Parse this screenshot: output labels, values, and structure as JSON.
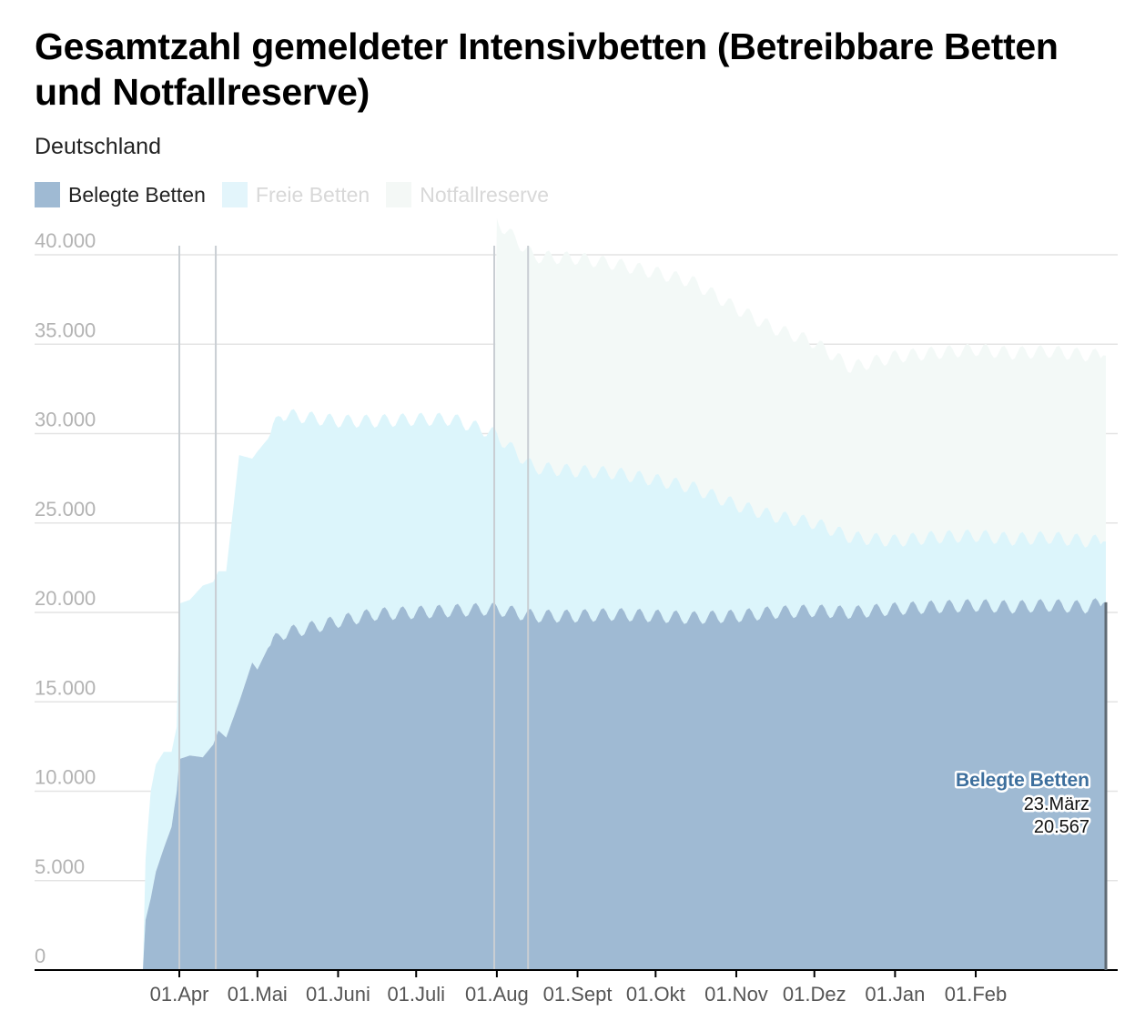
{
  "chart_data": {
    "type": "area",
    "title": "Gesamtzahl gemeldeter Intensivbetten (Betreibbare Betten und Notfallreserve)",
    "subtitle": "Deutschland",
    "stacked": true,
    "ylim": [
      0,
      40000
    ],
    "y_ticks": [
      0,
      5000,
      10000,
      15000,
      20000,
      25000,
      30000,
      35000,
      40000
    ],
    "y_tick_labels": [
      "0",
      "5.000",
      "10.000",
      "15.000",
      "20.000",
      "25.000",
      "30.000",
      "35.000",
      "40.000"
    ],
    "x_range": [
      "2020-03-18",
      "2021-03-23"
    ],
    "x_ticks": [
      "2020-04-01",
      "2020-05-01",
      "2020-06-01",
      "2020-07-01",
      "2020-08-01",
      "2020-09-01",
      "2020-10-01",
      "2020-11-01",
      "2020-12-01",
      "2021-01-01",
      "2021-02-01"
    ],
    "x_tick_labels": [
      "01.Apr",
      "01.Mai",
      "01.Juni",
      "01.Juli",
      "01.Aug",
      "01.Sept",
      "01.Okt",
      "01.Nov",
      "01.Dez",
      "01.Jan",
      "01.Feb"
    ],
    "grid": true,
    "legend_position": "top-left",
    "colors": {
      "belegt": "#9fbad3",
      "frei": "#dcf5fb",
      "reserve": "#f3f9f7",
      "grid": "#e4e4e4",
      "tick": "#b3b3b3",
      "axis": "#000000",
      "tooltip_title": "#3d6f9d"
    },
    "series": [
      {
        "name": "Belegte Betten",
        "x": [
          "2020-03-18",
          "2020-03-19",
          "2020-03-21",
          "2020-03-23",
          "2020-03-26",
          "2020-03-29",
          "2020-03-31",
          "2020-04-01",
          "2020-04-05",
          "2020-04-10",
          "2020-04-14",
          "2020-04-16",
          "2020-04-19",
          "2020-04-24",
          "2020-04-29",
          "2020-05-01",
          "2020-05-05",
          "2020-05-10",
          "2020-05-20",
          "2020-06-01",
          "2020-06-15",
          "2020-07-01",
          "2020-07-15",
          "2020-07-31",
          "2020-08-15",
          "2020-09-01",
          "2020-09-15",
          "2020-10-01",
          "2020-10-15",
          "2020-11-01",
          "2020-11-15",
          "2020-12-01",
          "2020-12-15",
          "2021-01-01",
          "2021-01-15",
          "2021-02-01",
          "2021-02-15",
          "2021-03-01",
          "2021-03-15",
          "2021-03-23"
        ],
        "values": [
          0,
          2800,
          4000,
          5500,
          6800,
          8000,
          10000,
          11800,
          12000,
          11900,
          12600,
          13400,
          13000,
          15000,
          17200,
          16800,
          18000,
          18800,
          19100,
          19500,
          19900,
          20000,
          20100,
          20200,
          19800,
          19800,
          19900,
          19800,
          19700,
          19800,
          20000,
          20100,
          20000,
          20200,
          20300,
          20400,
          20300,
          20400,
          20300,
          20567
        ]
      },
      {
        "name": "Freie Betten",
        "x": [
          "2020-03-18",
          "2020-03-19",
          "2020-03-21",
          "2020-03-23",
          "2020-03-26",
          "2020-03-29",
          "2020-03-31",
          "2020-04-01",
          "2020-04-05",
          "2020-04-10",
          "2020-04-14",
          "2020-04-16",
          "2020-04-19",
          "2020-04-24",
          "2020-04-29",
          "2020-05-01",
          "2020-05-05",
          "2020-05-10",
          "2020-05-20",
          "2020-06-01",
          "2020-06-15",
          "2020-07-01",
          "2020-07-15",
          "2020-07-31",
          "2020-08-15",
          "2020-09-01",
          "2020-09-15",
          "2020-10-01",
          "2020-10-15",
          "2020-11-01",
          "2020-11-15",
          "2020-12-01",
          "2020-12-15",
          "2021-01-01",
          "2021-01-15",
          "2021-02-01",
          "2021-02-15",
          "2021-03-01",
          "2021-03-15",
          "2021-03-23"
        ],
        "values": [
          0,
          3400,
          6000,
          6000,
          5400,
          4200,
          3600,
          8700,
          8700,
          9600,
          9100,
          8900,
          9300,
          13800,
          11400,
          12200,
          11700,
          12300,
          11800,
          11200,
          10800,
          10800,
          10700,
          9800,
          8300,
          8100,
          7900,
          7600,
          7300,
          6200,
          5400,
          4900,
          4200,
          3800,
          3900,
          3900,
          3800,
          3800,
          3700,
          3400
        ]
      },
      {
        "name": "Notfallreserve",
        "x": [
          "2020-07-31",
          "2020-08-01",
          "2020-08-15",
          "2020-09-01",
          "2020-09-15",
          "2020-10-01",
          "2020-10-15",
          "2020-11-01",
          "2020-11-15",
          "2020-12-01",
          "2020-12-15",
          "2021-01-01",
          "2021-01-15",
          "2021-02-01",
          "2021-02-15",
          "2021-03-01",
          "2021-03-15",
          "2021-03-23"
        ],
        "values": [
          0,
          12000,
          11800,
          11900,
          11700,
          11600,
          11500,
          11000,
          10500,
          10100,
          9500,
          10300,
          10300,
          10400,
          10400,
          10400,
          10400,
          10400
        ]
      }
    ],
    "vertical_lines": [
      "2020-04-01",
      "2020-04-15",
      "2020-07-31",
      "2020-08-13"
    ],
    "tooltip": {
      "series": "Belegte Betten",
      "date": "23.März",
      "value": "20.567"
    }
  }
}
